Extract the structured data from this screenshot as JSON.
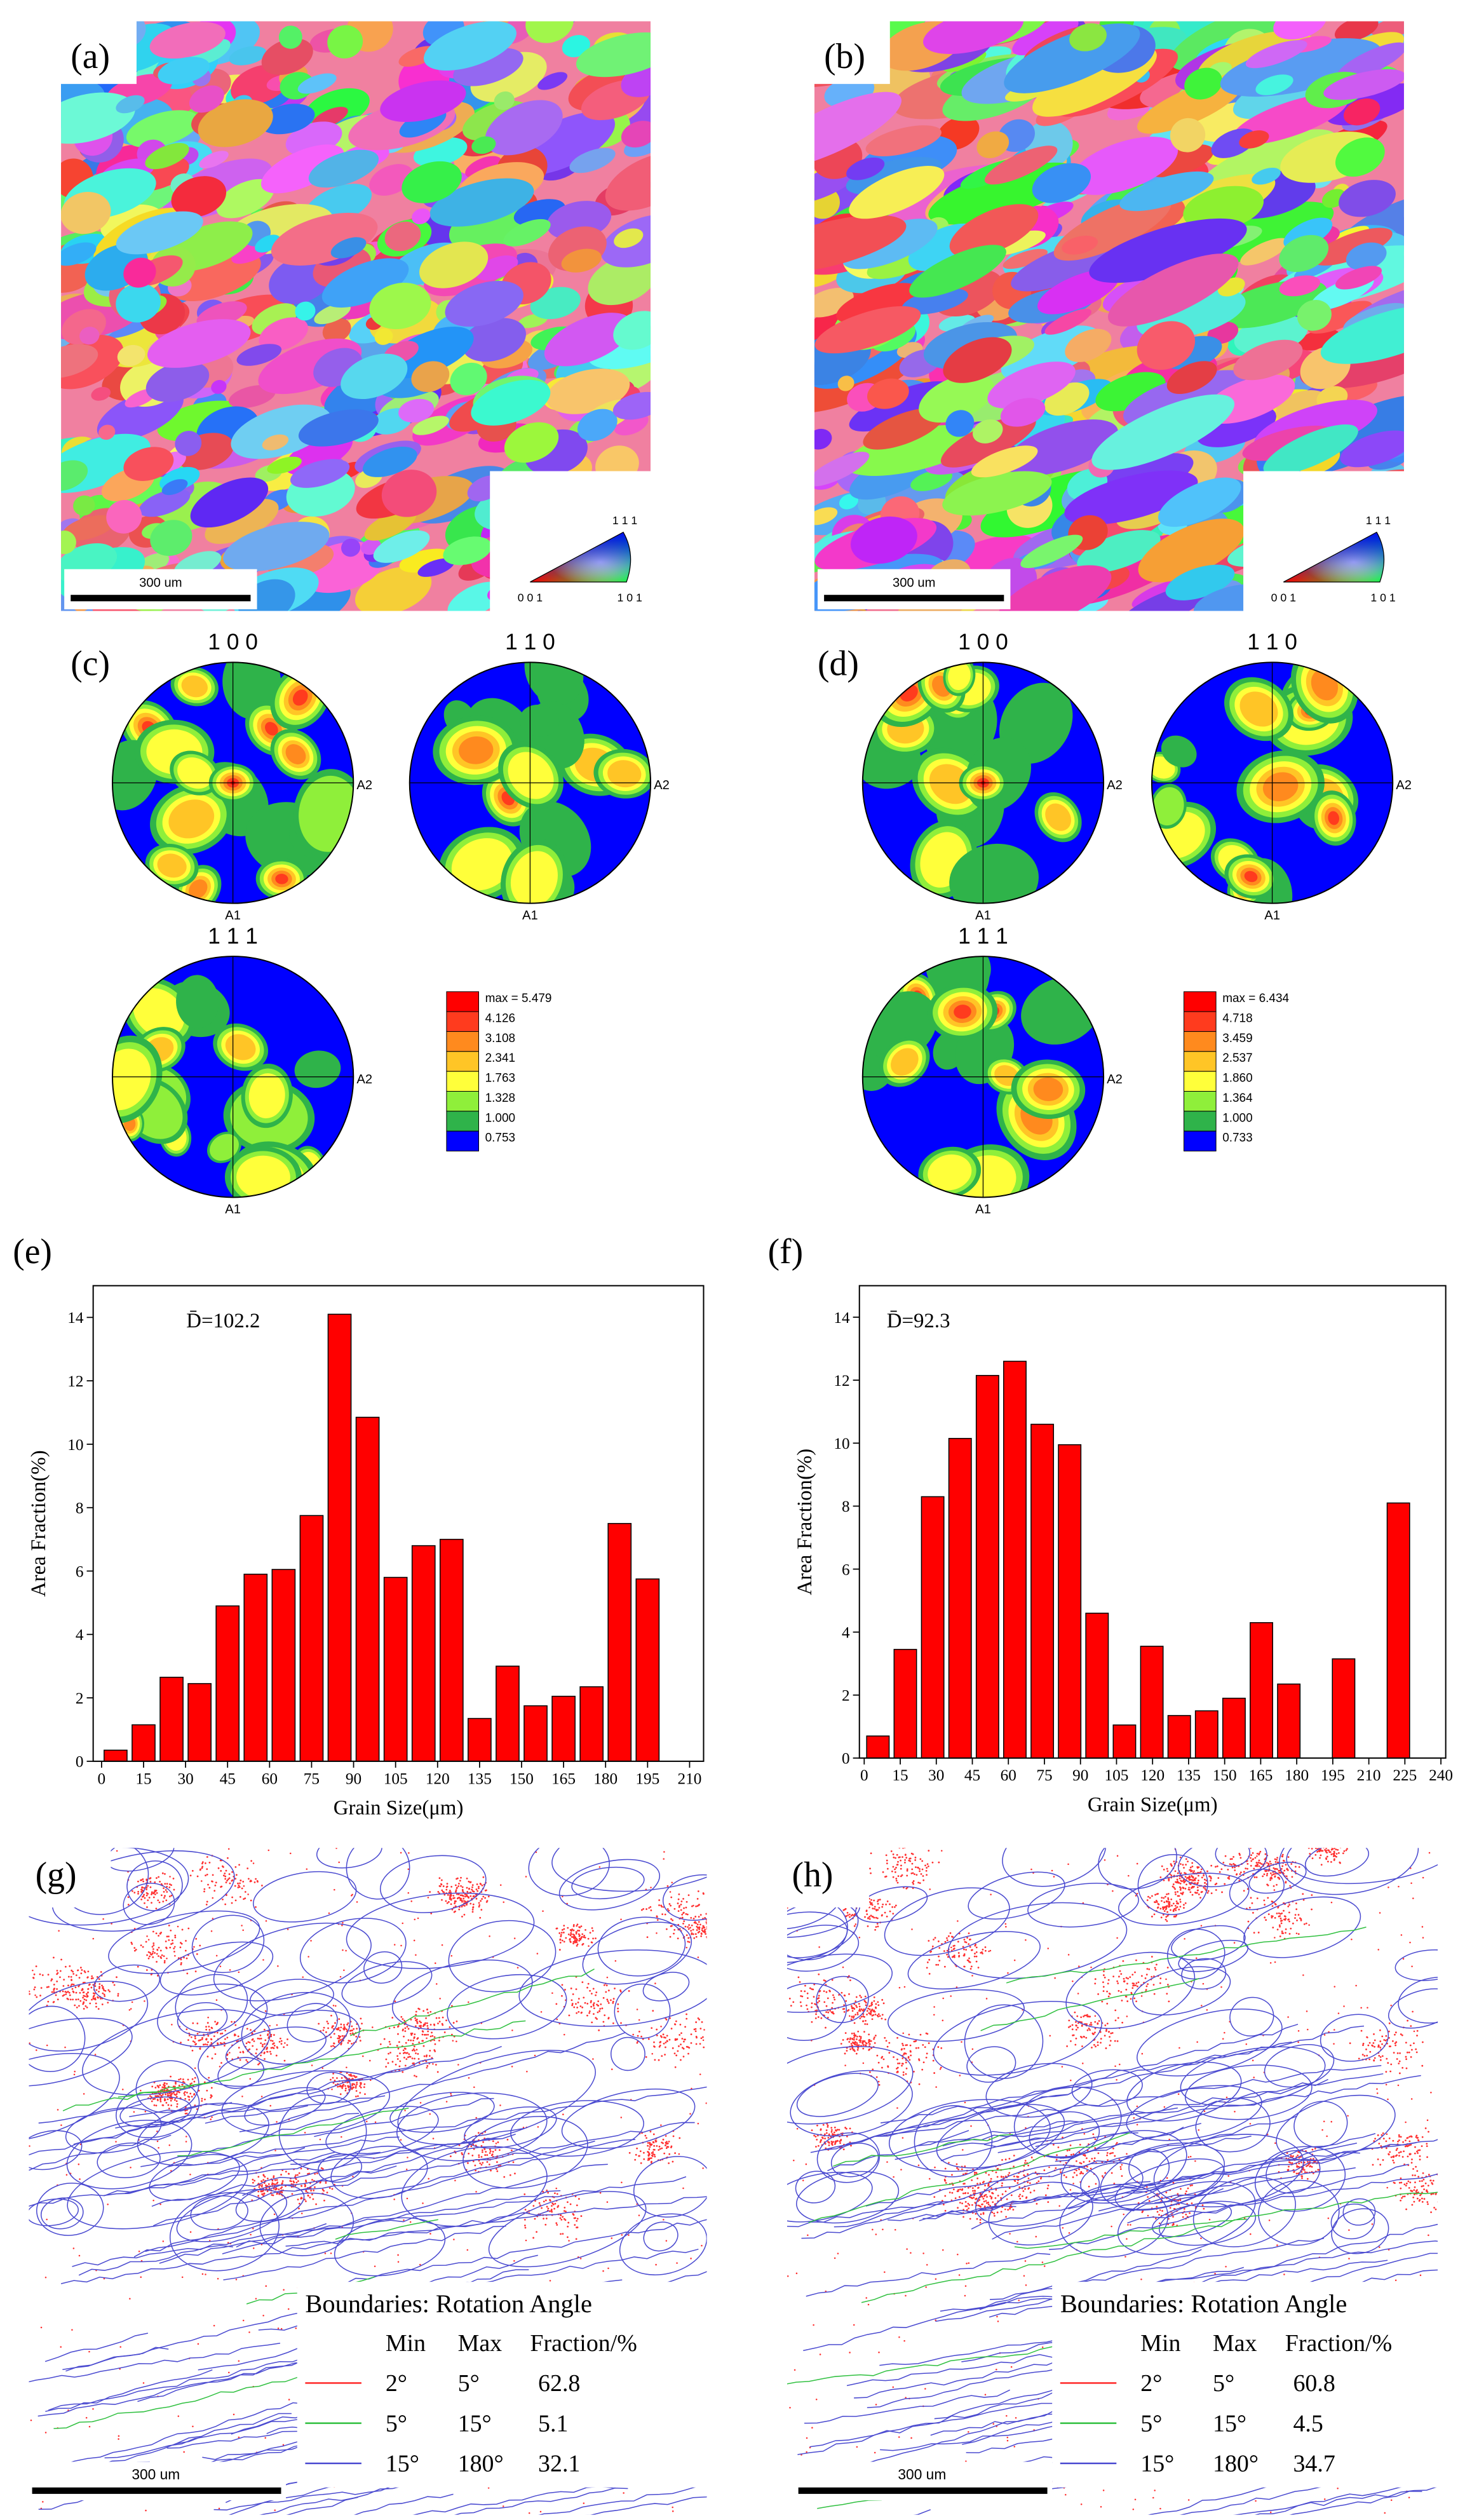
{
  "panel_labels": [
    "(a)",
    "(b)",
    "(c)",
    "(d)",
    "(e)",
    "(f)",
    "(g)",
    "(h)"
  ],
  "ipf_maps": [
    {
      "scale_bar": "300 um",
      "triangle_labels": [
        "0 0 1",
        "1 0 1",
        "1 1 1"
      ]
    },
    {
      "scale_bar": "300 um",
      "triangle_labels": [
        "0 0 1",
        "1 0 1",
        "1 1 1"
      ]
    }
  ],
  "pole_figures": [
    {
      "figures": [
        {
          "title": "1 0 0",
          "axis_right": "A2",
          "axis_bottom": "A1"
        },
        {
          "title": "1 1 0",
          "axis_right": "A2",
          "axis_bottom": "A1"
        },
        {
          "title": "1 1 1",
          "axis_right": "A2",
          "axis_bottom": "A1"
        }
      ],
      "legend_labels": [
        "max = 5.479",
        "4.126",
        "3.108",
        "2.341",
        "1.763",
        "1.328",
        "1.000",
        "0.753"
      ],
      "legend_colors": [
        "#ff0000",
        "#ff3b1e",
        "#ff8a1e",
        "#ffc526",
        "#ffff3a",
        "#8fef3a",
        "#2fb34a",
        "#0000ff"
      ]
    },
    {
      "figures": [
        {
          "title": "1 0 0",
          "axis_right": "A2",
          "axis_bottom": "A1"
        },
        {
          "title": "1 1 0",
          "axis_right": "A2",
          "axis_bottom": "A1"
        },
        {
          "title": "1 1 1",
          "axis_right": "A2",
          "axis_bottom": "A1"
        }
      ],
      "legend_labels": [
        "max = 6.434",
        "4.718",
        "3.459",
        "2.537",
        "1.860",
        "1.364",
        "1.000",
        "0.733"
      ],
      "legend_colors": [
        "#ff0000",
        "#ff3b1e",
        "#ff8a1e",
        "#ffc526",
        "#ffff3a",
        "#8fef3a",
        "#2fb34a",
        "#0000ff"
      ]
    }
  ],
  "chart_data": [
    {
      "type": "histogram",
      "annotation": "D̄=102.2",
      "x_label": "Grain Size(μm)",
      "y_label": "Area Fraction(%)",
      "bins": [
        0,
        10,
        20,
        30,
        40,
        50,
        60,
        70,
        80,
        90,
        100,
        110,
        120,
        130,
        140,
        150,
        160,
        170,
        180,
        190,
        200
      ],
      "values": [
        0.35,
        1.15,
        2.65,
        2.45,
        4.9,
        5.9,
        6.05,
        7.75,
        14.1,
        10.85,
        5.8,
        6.8,
        7.0,
        1.35,
        3.0,
        1.75,
        2.05,
        2.35,
        7.5,
        5.75
      ],
      "color": "#ff0000",
      "xlim": [
        -3,
        215
      ],
      "xticks": [
        0,
        15,
        30,
        45,
        60,
        75,
        90,
        105,
        120,
        135,
        150,
        165,
        180,
        195,
        210
      ],
      "ylim": [
        0,
        15
      ],
      "yticks": [
        0,
        2,
        4,
        6,
        8,
        10,
        12,
        14
      ]
    },
    {
      "type": "histogram",
      "annotation": "D̄=92.3",
      "x_label": "Grain Size(μm)",
      "y_label": "Area Fraction(%)",
      "bins": [
        0,
        11.4,
        22.8,
        34.2,
        45.6,
        57,
        68.4,
        79.8,
        91.2,
        102.6,
        114,
        125.4,
        136.8,
        148.2,
        159.6,
        171,
        182.4,
        193.8,
        205.2,
        216.6,
        228
      ],
      "values": [
        0.7,
        3.45,
        8.3,
        10.15,
        12.15,
        12.6,
        10.6,
        9.95,
        4.6,
        1.05,
        3.55,
        1.35,
        1.5,
        1.9,
        4.3,
        2.35,
        0,
        3.15,
        0,
        8.1
      ],
      "color": "#ff0000",
      "xlim": [
        -2,
        242
      ],
      "xticks": [
        0,
        15,
        30,
        45,
        60,
        75,
        90,
        105,
        120,
        135,
        150,
        165,
        180,
        195,
        210,
        225,
        240
      ],
      "ylim": [
        0,
        15
      ],
      "yticks": [
        0,
        2,
        4,
        6,
        8,
        10,
        12,
        14
      ]
    }
  ],
  "boundary_maps": [
    {
      "scale_bar": "300 um",
      "legend_title": "Boundaries: Rotation Angle",
      "columns": [
        "Min",
        "Max",
        "Fraction/%"
      ],
      "rows": [
        {
          "color": "#ff3030",
          "min": "2°",
          "max": "5°",
          "fraction": 62.8
        },
        {
          "color": "#30c040",
          "min": "5°",
          "max": "15°",
          "fraction": 5.1
        },
        {
          "color": "#4a4ad0",
          "min": "15°",
          "max": "180°",
          "fraction": 32.1
        }
      ]
    },
    {
      "scale_bar": "300 um",
      "legend_title": "Boundaries: Rotation Angle",
      "columns": [
        "Min",
        "Max",
        "Fraction/%"
      ],
      "rows": [
        {
          "color": "#ff3030",
          "min": "2°",
          "max": "5°",
          "fraction": 60.8
        },
        {
          "color": "#30c040",
          "min": "5°",
          "max": "15°",
          "fraction": 4.5
        },
        {
          "color": "#4a4ad0",
          "min": "15°",
          "max": "180°",
          "fraction": 34.7
        }
      ]
    }
  ]
}
